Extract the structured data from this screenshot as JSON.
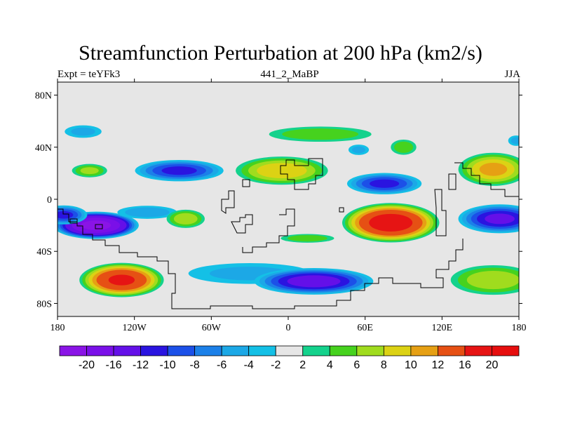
{
  "chart_data": {
    "type": "heatmap",
    "title": "Streamfunction Perturbation at 200 hPa (km2/s)",
    "left_string": "Expt = teYFk3",
    "center_string": "441_2_MaBP",
    "right_string": "JJA",
    "xticks": [
      {
        "value": -180,
        "label": "180"
      },
      {
        "value": -120,
        "label": "120W"
      },
      {
        "value": -60,
        "label": "60W"
      },
      {
        "value": 0,
        "label": "0"
      },
      {
        "value": 60,
        "label": "60E"
      },
      {
        "value": 120,
        "label": "120E"
      },
      {
        "value": 180,
        "label": "180"
      }
    ],
    "yticks": [
      {
        "value": 80,
        "label": "80N"
      },
      {
        "value": 40,
        "label": "40N"
      },
      {
        "value": 0,
        "label": "0"
      },
      {
        "value": -40,
        "label": "40S"
      },
      {
        "value": -80,
        "label": "80S"
      }
    ],
    "xlim": [
      -180,
      180
    ],
    "ylim": [
      -90,
      90
    ],
    "levels": [
      -20,
      -16,
      -12,
      -10,
      -8,
      -6,
      -4,
      -2,
      2,
      4,
      6,
      8,
      10,
      12,
      16,
      20
    ],
    "level_labels": [
      "-20",
      "-16",
      "-12",
      "-10",
      "-8",
      "-6",
      "-4",
      "-2",
      "2",
      "4",
      "6",
      "8",
      "10",
      "12",
      "16",
      "20"
    ],
    "colors": [
      "#8a14e6",
      "#7a10e8",
      "#6410e8",
      "#2a14e0",
      "#1c50e8",
      "#1c80e8",
      "#1ca8e6",
      "#14c0e6",
      "#e6e6e6",
      "#14d28c",
      "#46d21e",
      "#a0dc1e",
      "#dcd214",
      "#e6a014",
      "#e65014",
      "#e61414",
      "#e60e0e"
    ],
    "features": [
      {
        "lon": -150,
        "lat": -20,
        "rx": 35,
        "ry": 11,
        "value": -21
      },
      {
        "lon": -130,
        "lat": -62,
        "rx": 35,
        "ry": 14,
        "value": 16
      },
      {
        "lon": -85,
        "lat": 22,
        "rx": 38,
        "ry": 9,
        "value": -10
      },
      {
        "lon": -110,
        "lat": -10,
        "rx": 28,
        "ry": 6,
        "value": -5
      },
      {
        "lon": -155,
        "lat": 22,
        "rx": 16,
        "ry": 6,
        "value": 6
      },
      {
        "lon": -160,
        "lat": 52,
        "rx": 18,
        "ry": 6,
        "value": -4
      },
      {
        "lon": -80,
        "lat": -15,
        "rx": 17,
        "ry": 8,
        "value": 7
      },
      {
        "lon": -30,
        "lat": -57,
        "rx": 60,
        "ry": 10,
        "value": -4
      },
      {
        "lon": 20,
        "lat": -63,
        "rx": 50,
        "ry": 11,
        "value": -13
      },
      {
        "lon": -5,
        "lat": 22,
        "rx": 40,
        "ry": 12,
        "value": 9
      },
      {
        "lon": 25,
        "lat": 50,
        "rx": 48,
        "ry": 7,
        "value": 5
      },
      {
        "lon": 55,
        "lat": 38,
        "rx": 10,
        "ry": 5,
        "value": -4
      },
      {
        "lon": 90,
        "lat": 40,
        "rx": 12,
        "ry": 7,
        "value": 5
      },
      {
        "lon": 75,
        "lat": 12,
        "rx": 32,
        "ry": 9,
        "value": -10
      },
      {
        "lon": 80,
        "lat": -18,
        "rx": 40,
        "ry": 16,
        "value": 18
      },
      {
        "lon": 15,
        "lat": -30,
        "rx": 25,
        "ry": 4,
        "value": 5
      },
      {
        "lon": 160,
        "lat": 23,
        "rx": 30,
        "ry": 14,
        "value": 10
      },
      {
        "lon": 165,
        "lat": -15,
        "rx": 35,
        "ry": 12,
        "value": -12
      },
      {
        "lon": 160,
        "lat": -62,
        "rx": 38,
        "ry": 13,
        "value": 7
      },
      {
        "lon": 178,
        "lat": 45,
        "rx": 8,
        "ry": 5,
        "value": -4
      },
      {
        "lon": -175,
        "lat": -12,
        "rx": 20,
        "ry": 8,
        "value": -10
      }
    ]
  }
}
